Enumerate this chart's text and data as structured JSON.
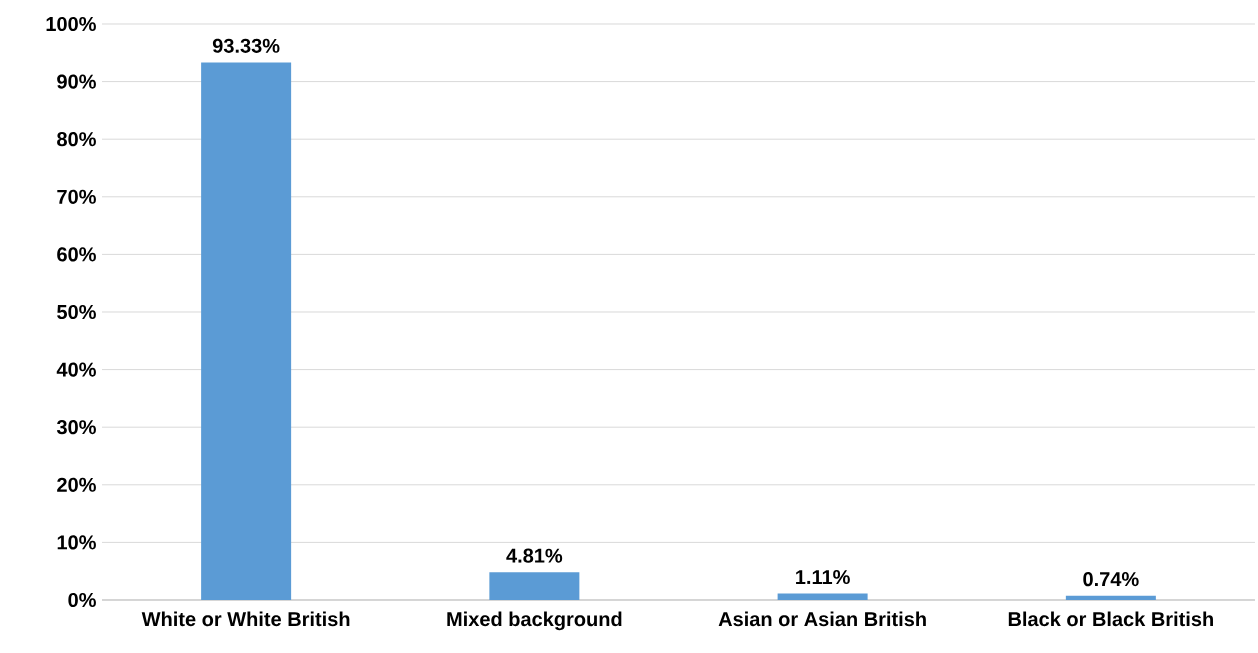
{
  "chart_data": {
    "type": "bar",
    "categories": [
      "White or White British",
      "Mixed background",
      "Asian or Asian British",
      "Black or Black British"
    ],
    "values": [
      93.33,
      4.81,
      1.11,
      0.74
    ],
    "value_labels": [
      "93.33%",
      "4.81%",
      "1.11%",
      "0.74%"
    ],
    "color": "#5b9bd5",
    "ylim": [
      0,
      100
    ],
    "yticks": [
      {
        "value": 0,
        "label": "0%"
      },
      {
        "value": 10,
        "label": "10%"
      },
      {
        "value": 20,
        "label": "20%"
      },
      {
        "value": 30,
        "label": "30%"
      },
      {
        "value": 40,
        "label": "40%"
      },
      {
        "value": 50,
        "label": "50%"
      },
      {
        "value": 60,
        "label": "60%"
      },
      {
        "value": 70,
        "label": "70%"
      },
      {
        "value": 80,
        "label": "80%"
      },
      {
        "value": 90,
        "label": "90%"
      },
      {
        "value": 100,
        "label": "100%"
      }
    ],
    "grid": "y"
  }
}
